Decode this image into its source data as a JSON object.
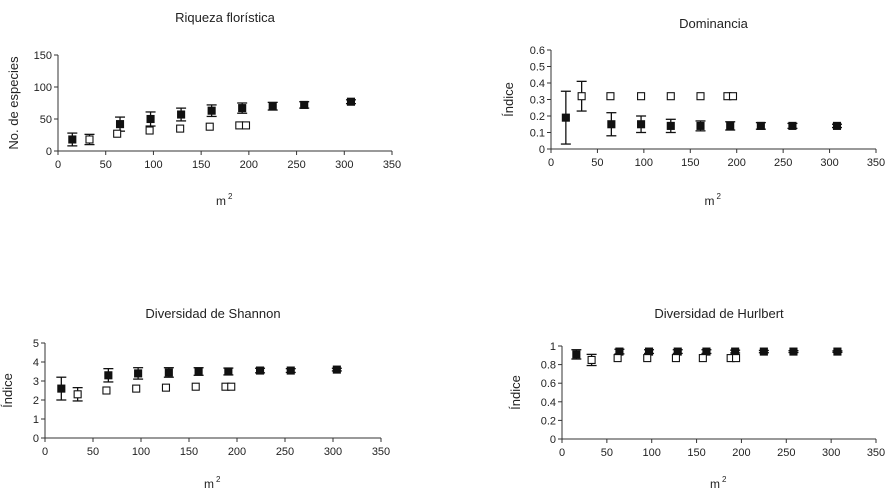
{
  "chart_data": [
    {
      "type": "scatter",
      "title": "Riqueza florística",
      "xlabel": "m",
      "xlabel_sup": "2",
      "ylabel": "No. de especies",
      "xlim": [
        0,
        350
      ],
      "ylim": [
        0,
        150
      ],
      "xticks": [
        "0",
        "50",
        "100",
        "150",
        "200",
        "250",
        "300",
        "350"
      ],
      "yticks": [
        "0",
        "50",
        "100",
        "150"
      ],
      "series": [
        {
          "marker": "filled-square",
          "points": [
            {
              "x": 15,
              "y": 18,
              "err": 10
            },
            {
              "x": 65,
              "y": 42,
              "err": 11
            },
            {
              "x": 97,
              "y": 50,
              "err": 11
            },
            {
              "x": 129,
              "y": 57,
              "err": 10
            },
            {
              "x": 161,
              "y": 63,
              "err": 9
            },
            {
              "x": 193,
              "y": 67,
              "err": 8
            },
            {
              "x": 225,
              "y": 70,
              "err": 6
            },
            {
              "x": 258,
              "y": 72,
              "err": 5
            },
            {
              "x": 307,
              "y": 77,
              "err": 3
            }
          ]
        },
        {
          "marker": "open-square",
          "points": [
            {
              "x": 33,
              "y": 18,
              "err": 8
            },
            {
              "x": 62,
              "y": 27,
              "err": 0
            },
            {
              "x": 96,
              "y": 32,
              "err": 0
            },
            {
              "x": 128,
              "y": 35,
              "err": 0
            },
            {
              "x": 159,
              "y": 38,
              "err": 0
            },
            {
              "x": 190,
              "y": 40,
              "err": 0
            },
            {
              "x": 197,
              "y": 40,
              "err": 0
            }
          ]
        }
      ]
    },
    {
      "type": "scatter",
      "title": "Dominancia",
      "xlabel": "m",
      "xlabel_sup": "2",
      "ylabel": "Índice",
      "xlim": [
        0,
        350
      ],
      "ylim": [
        0,
        0.6
      ],
      "xticks": [
        "0",
        "50",
        "100",
        "150",
        "200",
        "250",
        "300",
        "350"
      ],
      "yticks": [
        "0",
        "0.1",
        "0.2",
        "0.3",
        "0.4",
        "0.5",
        "0.6"
      ],
      "series": [
        {
          "marker": "filled-square",
          "points": [
            {
              "x": 16,
              "y": 0.19,
              "err": 0.16
            },
            {
              "x": 65,
              "y": 0.15,
              "err": 0.07
            },
            {
              "x": 97,
              "y": 0.15,
              "err": 0.05
            },
            {
              "x": 129,
              "y": 0.14,
              "err": 0.04
            },
            {
              "x": 161,
              "y": 0.14,
              "err": 0.03
            },
            {
              "x": 193,
              "y": 0.14,
              "err": 0.025
            },
            {
              "x": 226,
              "y": 0.14,
              "err": 0.02
            },
            {
              "x": 260,
              "y": 0.14,
              "err": 0.015
            },
            {
              "x": 308,
              "y": 0.14,
              "err": 0.01
            }
          ]
        },
        {
          "marker": "open-square",
          "points": [
            {
              "x": 33,
              "y": 0.32,
              "err": 0.09
            },
            {
              "x": 64,
              "y": 0.32,
              "err": 0
            },
            {
              "x": 97,
              "y": 0.32,
              "err": 0
            },
            {
              "x": 129,
              "y": 0.32,
              "err": 0
            },
            {
              "x": 161,
              "y": 0.32,
              "err": 0
            },
            {
              "x": 190,
              "y": 0.32,
              "err": 0
            },
            {
              "x": 196,
              "y": 0.32,
              "err": 0
            }
          ]
        }
      ]
    },
    {
      "type": "scatter",
      "title": "Diversidad de Shannon",
      "xlabel": "m",
      "xlabel_sup": "2",
      "ylabel": "Índice",
      "xlim": [
        0,
        350
      ],
      "ylim": [
        0,
        5
      ],
      "xticks": [
        "0",
        "50",
        "100",
        "150",
        "200",
        "250",
        "300",
        "350"
      ],
      "yticks": [
        "0",
        "1",
        "2",
        "3",
        "4",
        "5"
      ],
      "series": [
        {
          "marker": "filled-square",
          "points": [
            {
              "x": 17,
              "y": 2.6,
              "err": 0.6
            },
            {
              "x": 66,
              "y": 3.3,
              "err": 0.35
            },
            {
              "x": 97,
              "y": 3.4,
              "err": 0.3
            },
            {
              "x": 129,
              "y": 3.45,
              "err": 0.25
            },
            {
              "x": 160,
              "y": 3.5,
              "err": 0.2
            },
            {
              "x": 191,
              "y": 3.5,
              "err": 0.18
            },
            {
              "x": 224,
              "y": 3.55,
              "err": 0.12
            },
            {
              "x": 256,
              "y": 3.55,
              "err": 0.1
            },
            {
              "x": 304,
              "y": 3.6,
              "err": 0.07
            }
          ]
        },
        {
          "marker": "open-square",
          "points": [
            {
              "x": 34,
              "y": 2.3,
              "err": 0.35
            },
            {
              "x": 64,
              "y": 2.5,
              "err": 0
            },
            {
              "x": 95,
              "y": 2.6,
              "err": 0
            },
            {
              "x": 126,
              "y": 2.65,
              "err": 0
            },
            {
              "x": 157,
              "y": 2.7,
              "err": 0
            },
            {
              "x": 188,
              "y": 2.7,
              "err": 0
            },
            {
              "x": 194,
              "y": 2.7,
              "err": 0
            }
          ]
        }
      ]
    },
    {
      "type": "scatter",
      "title": "Diversidad de Hurlbert",
      "xlabel": "m",
      "xlabel_sup": "2",
      "ylabel": "Índice",
      "xlim": [
        0,
        350
      ],
      "ylim": [
        0,
        1
      ],
      "xticks": [
        "0",
        "50",
        "100",
        "150",
        "200",
        "250",
        "300",
        "350"
      ],
      "yticks": [
        "0",
        "0.2",
        "0.4",
        "0.6",
        "0.8",
        "1"
      ],
      "series": [
        {
          "marker": "filled-square",
          "points": [
            {
              "x": 16,
              "y": 0.91,
              "err": 0.05
            },
            {
              "x": 64,
              "y": 0.94,
              "err": 0.025
            },
            {
              "x": 97,
              "y": 0.94,
              "err": 0.02
            },
            {
              "x": 129,
              "y": 0.94,
              "err": 0.02
            },
            {
              "x": 161,
              "y": 0.94,
              "err": 0.02
            },
            {
              "x": 193,
              "y": 0.94,
              "err": 0.015
            },
            {
              "x": 225,
              "y": 0.94,
              "err": 0.012
            },
            {
              "x": 258,
              "y": 0.94,
              "err": 0.01
            },
            {
              "x": 307,
              "y": 0.94,
              "err": 0.008
            }
          ]
        },
        {
          "marker": "open-square",
          "points": [
            {
              "x": 33,
              "y": 0.85,
              "err": 0.06
            },
            {
              "x": 62,
              "y": 0.87,
              "err": 0
            },
            {
              "x": 95,
              "y": 0.87,
              "err": 0
            },
            {
              "x": 127,
              "y": 0.87,
              "err": 0
            },
            {
              "x": 157,
              "y": 0.87,
              "err": 0
            },
            {
              "x": 188,
              "y": 0.87,
              "err": 0
            },
            {
              "x": 194,
              "y": 0.87,
              "err": 0
            }
          ]
        }
      ]
    }
  ]
}
